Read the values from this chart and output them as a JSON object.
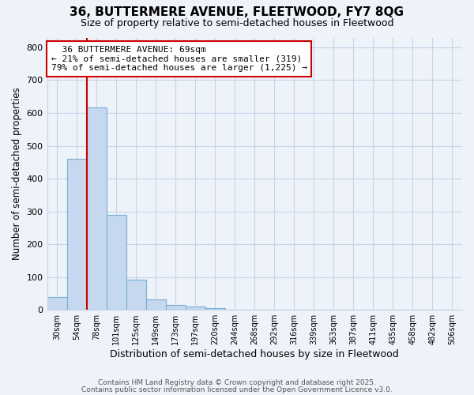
{
  "title1": "36, BUTTERMERE AVENUE, FLEETWOOD, FY7 8QG",
  "title2": "Size of property relative to semi-detached houses in Fleetwood",
  "xlabel": "Distribution of semi-detached houses by size in Fleetwood",
  "ylabel": "Number of semi-detached properties",
  "bar_labels": [
    "30sqm",
    "54sqm",
    "78sqm",
    "101sqm",
    "125sqm",
    "149sqm",
    "173sqm",
    "197sqm",
    "220sqm",
    "244sqm",
    "268sqm",
    "292sqm",
    "316sqm",
    "339sqm",
    "363sqm",
    "387sqm",
    "411sqm",
    "435sqm",
    "458sqm",
    "482sqm",
    "506sqm"
  ],
  "bar_values": [
    40,
    460,
    617,
    290,
    93,
    33,
    16,
    10,
    6,
    0,
    0,
    0,
    0,
    0,
    0,
    0,
    0,
    0,
    0,
    0,
    0
  ],
  "bar_color": "#c5d8f0",
  "bar_edge_color": "#7aadd4",
  "grid_color": "#c8d4e8",
  "background_color": "#eef2f9",
  "property_label": "36 BUTTERMERE AVENUE: 69sqm",
  "pct_smaller": 21,
  "count_smaller": 319,
  "pct_larger": 79,
  "count_larger": 1225,
  "vline_x_index": 2,
  "annotation_box_color": "#ffffff",
  "annotation_border_color": "#cc0000",
  "vline_color": "#cc0000",
  "ylim": [
    0,
    830
  ],
  "yticks": [
    0,
    100,
    200,
    300,
    400,
    500,
    600,
    700,
    800
  ],
  "footer1": "Contains HM Land Registry data © Crown copyright and database right 2025.",
  "footer2": "Contains public sector information licensed under the Open Government Licence v3.0."
}
